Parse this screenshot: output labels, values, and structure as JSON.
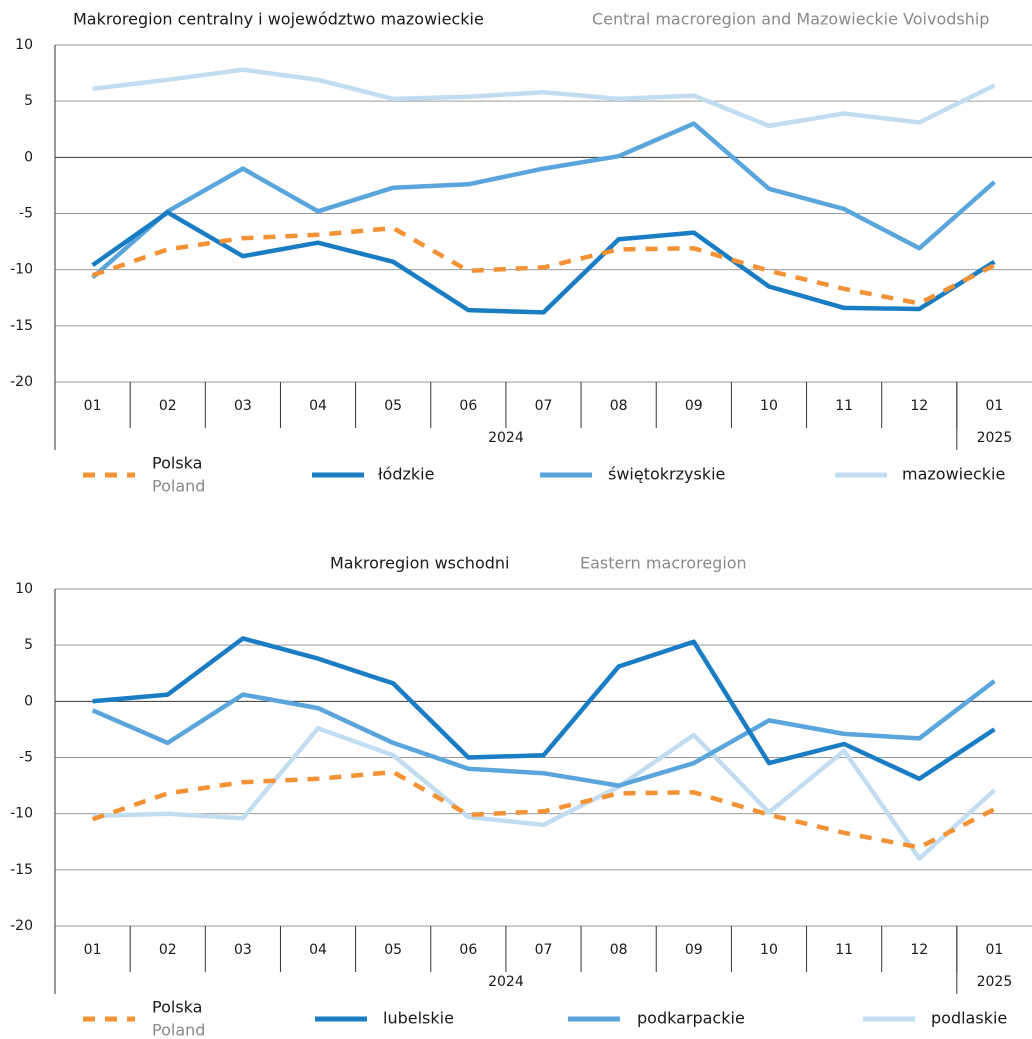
{
  "chart_data": [
    {
      "type": "line",
      "title": "Makroregion centralny i województwo mazowieckie",
      "subtitle": "Central macroregion and Mazowieckie Voivodship",
      "categories": [
        "01",
        "02",
        "03",
        "04",
        "05",
        "06",
        "07",
        "08",
        "09",
        "10",
        "11",
        "12",
        "01"
      ],
      "x_groups": [
        {
          "label": "2024",
          "count": 12
        },
        {
          "label": "2025",
          "count": 1
        }
      ],
      "ylim": [
        -20,
        10
      ],
      "yticks": [
        -20,
        -15,
        -10,
        -5,
        0,
        5,
        10
      ],
      "grid": true,
      "series": [
        {
          "name": "Polska",
          "subname": "Poland",
          "color": "#f39234",
          "dashed": true,
          "values": [
            -10.5,
            -8.2,
            -7.2,
            -6.9,
            -6.3,
            -10.1,
            -9.8,
            -8.2,
            -8.1,
            -10.1,
            -11.7,
            -13.0,
            -9.6
          ]
        },
        {
          "name": "łódzkie",
          "color": "#1a7dc4",
          "dashed": false,
          "values": [
            -9.6,
            -4.9,
            -8.8,
            -7.6,
            -9.3,
            -13.6,
            -13.8,
            -7.3,
            -6.7,
            -11.5,
            -13.4,
            -13.5,
            -9.3
          ]
        },
        {
          "name": "świętokrzyskie",
          "color": "#5aa6dc",
          "dashed": false,
          "values": [
            -10.7,
            -4.8,
            -1.0,
            -4.8,
            -2.7,
            -2.4,
            -1.0,
            0.1,
            3.0,
            -2.8,
            -4.6,
            -8.1,
            -2.2
          ]
        },
        {
          "name": "mazowieckie",
          "color": "#c2ddf0",
          "dashed": false,
          "values": [
            6.1,
            6.9,
            7.8,
            6.9,
            5.2,
            5.4,
            5.8,
            5.2,
            5.5,
            2.8,
            3.9,
            3.1,
            6.4
          ]
        }
      ]
    },
    {
      "type": "line",
      "title": "Makroregion wschodni",
      "subtitle": "Eastern macroregion",
      "categories": [
        "01",
        "02",
        "03",
        "04",
        "05",
        "06",
        "07",
        "08",
        "09",
        "10",
        "11",
        "12",
        "01"
      ],
      "x_groups": [
        {
          "label": "2024",
          "count": 12
        },
        {
          "label": "2025",
          "count": 1
        }
      ],
      "ylim": [
        -20,
        10
      ],
      "yticks": [
        -20,
        -15,
        -10,
        -5,
        0,
        5,
        10
      ],
      "grid": true,
      "series": [
        {
          "name": "Polska",
          "subname": "Poland",
          "color": "#f39234",
          "dashed": true,
          "values": [
            -10.5,
            -8.2,
            -7.2,
            -6.9,
            -6.3,
            -10.1,
            -9.8,
            -8.2,
            -8.1,
            -10.1,
            -11.7,
            -13.0,
            -9.6
          ]
        },
        {
          "name": "lubelskie",
          "color": "#1a7dc4",
          "dashed": false,
          "values": [
            0.0,
            0.6,
            5.6,
            3.8,
            1.6,
            -5.0,
            -4.8,
            3.1,
            5.3,
            -5.5,
            -3.8,
            -6.9,
            -2.5
          ]
        },
        {
          "name": "podkarpackie",
          "color": "#5aa6dc",
          "dashed": false,
          "values": [
            -0.8,
            -3.7,
            0.6,
            -0.6,
            -3.7,
            -6.0,
            -6.4,
            -7.5,
            -5.5,
            -1.7,
            -2.9,
            -3.3,
            1.8
          ]
        },
        {
          "name": "podlaskie",
          "color": "#c2ddf0",
          "dashed": false,
          "values": [
            -10.2,
            -10.0,
            -10.4,
            -2.4,
            -4.8,
            -10.3,
            -11.0,
            -7.6,
            -3.0,
            -9.9,
            -4.4,
            -14.0,
            -7.9
          ]
        }
      ]
    }
  ]
}
